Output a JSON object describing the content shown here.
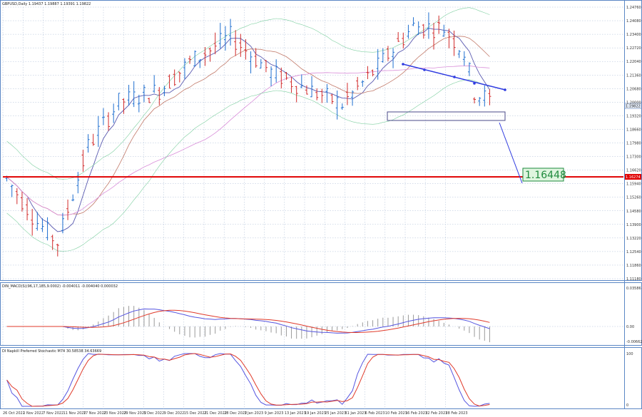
{
  "colors": {
    "border": "#5b87c5",
    "grid": "#a9bbd6",
    "bull_bar": "#1f6fd0",
    "bear_bar": "#d22b2b",
    "support_line": "#e00000",
    "trend_line": "#2f3be0",
    "box": "#4a4a8a",
    "macd_line": "#5555e0",
    "macd_signal": "#e03a2a",
    "macd_hist": "#9a9a9a",
    "stoch_k": "#5555e0",
    "stoch_d": "#e03a2a",
    "ma_fast": "#5a5ab0",
    "ma_mid": "#c27a6a",
    "ma_slow": "#d98ed9",
    "bb": "#7ecfa0",
    "target_label_bg": "#dff5df",
    "target_label_border": "#1e8a3c",
    "target_label_text": "#1e8a3c"
  },
  "header": {
    "main": "GBPUSD,Daily  1.19437 1.19887 1.19391 1.19822",
    "macd": "DIN_MACD(S)(96,17,185,9.0002)  -0.004011 -0.004040 0.000032",
    "stoch": "DI Napkill Preferred Stochastic M74 30.58538 34.63669"
  },
  "price_axis": {
    "ticks": [
      "1.24760",
      "1.24080",
      "1.23400",
      "1.22720",
      "1.22040",
      "1.21360",
      "1.20680",
      "1.20000",
      "1.19320",
      "1.18660",
      "1.17980",
      "1.17300",
      "1.16620",
      "1.15940",
      "1.15260",
      "1.14580",
      "1.13900",
      "1.13220",
      "1.12540",
      "1.11860",
      "1.11180"
    ],
    "current_price": "1.19822",
    "support_price": "1.16274"
  },
  "macd_axis": {
    "ticks": [
      "0.03586",
      "0.00",
      "-0.006622"
    ]
  },
  "stoch_axis": {
    "ticks": [
      "100",
      "0"
    ]
  },
  "date_axis": {
    "labels": [
      "26 Oct 2022",
      "1 Nov 2022",
      "7 Nov 2022",
      "11 Nov 2022",
      "17 Nov 2022",
      "23 Nov 2022",
      "29 Nov 2022",
      "5 Dec 2022",
      "9 Dec 2022",
      "15 Dec 2022",
      "21 Dec 2022",
      "28 Dec 2022",
      "3 Jan 2023",
      "9 Jan 2023",
      "13 Jan 2023",
      "19 Jan 2023",
      "25 Jan 2023",
      "31 Jan 2023",
      "6 Feb 2023",
      "10 Feb 2023",
      "16 Feb 2023",
      "22 Feb 2023",
      "28 Feb 2023"
    ]
  },
  "target_label": "1.16448",
  "chart_data": {
    "type": "candlestick",
    "symbol": "GBPUSD",
    "timeframe": "Daily",
    "ylim": [
      1.1118,
      1.2476
    ],
    "support_level": 1.16274,
    "target_level": 1.16448,
    "indicators": [
      "MACD",
      "Stochastic",
      "moving averages",
      "Bollinger bands"
    ]
  }
}
